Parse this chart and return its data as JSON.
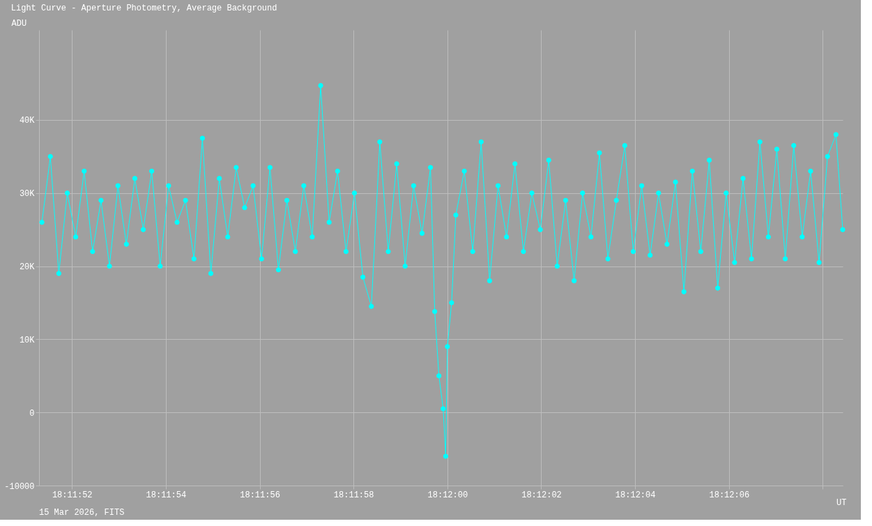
{
  "chart_data": {
    "type": "line",
    "title": "Light Curve - Aperture Photometry, Average Background",
    "ylabel": "ADU",
    "xlabel": "UT",
    "annotations": [
      "15 Mar 2026, FITS"
    ],
    "x": [
      18.1976,
      18.19765,
      18.1977,
      18.19775,
      18.1978,
      18.19785,
      18.1979,
      18.19795,
      18.198,
      18.19805,
      18.1981,
      18.19815,
      18.1982,
      18.19825,
      18.1983,
      18.19835,
      18.1984,
      18.19845,
      18.1985,
      18.19855,
      18.1986,
      18.19865,
      18.1987,
      18.19875,
      18.1988,
      18.19885,
      18.1989,
      18.19895,
      18.199,
      18.19905,
      18.1991,
      18.19915,
      18.1992,
      18.19925,
      18.1993,
      18.19935,
      18.1994,
      18.19945,
      18.1995,
      18.19955,
      18.1996,
      18.19965,
      18.1997,
      18.19975,
      18.1998,
      18.19985,
      18.1999,
      18.199925,
      18.19995,
      18.199975,
      18.19999,
      18.2,
      18.200025,
      18.20005,
      18.2001,
      18.20015,
      18.2002,
      18.20025,
      18.2003,
      18.20035,
      18.2004,
      18.20045,
      18.2005,
      18.20055,
      18.2006,
      18.20065,
      18.2007,
      18.20075,
      18.2008,
      18.20085,
      18.2009,
      18.20095,
      18.201,
      18.20105,
      18.2011,
      18.20115,
      18.2012,
      18.20125,
      18.2013,
      18.20135,
      18.2014,
      18.20145,
      18.2015,
      18.20155,
      18.2016,
      18.20165,
      18.2017,
      18.20175,
      18.2018,
      18.20185,
      18.2019,
      18.20195,
      18.202,
      18.20205,
      18.2021,
      18.20215,
      18.2022,
      18.20225,
      18.2023,
      18.20234
    ],
    "series": [
      {
        "color": "#00ffff",
        "values": [
          26000,
          35000,
          19000,
          30000,
          24000,
          33000,
          22000,
          29000,
          20000,
          31000,
          23000,
          32000,
          25000,
          33000,
          20000,
          31000,
          26000,
          29000,
          21000,
          37500,
          19000,
          32000,
          24000,
          33500,
          28000,
          31000,
          21000,
          33500,
          19500,
          29000,
          22000,
          31000,
          24000,
          44700,
          26000,
          33000,
          22000,
          30000,
          18500,
          14500,
          37000,
          22000,
          34000,
          20000,
          31000,
          24500,
          33500,
          13800,
          5000,
          500,
          -6000,
          9000,
          15000,
          27000,
          33000,
          22000,
          37000,
          18000,
          31000,
          24000,
          34000,
          22000,
          30000,
          25000,
          34500,
          20000,
          29000,
          18000,
          30000,
          24000,
          35500,
          21000,
          29000,
          36500,
          22000,
          31000,
          21500,
          30000,
          23000,
          31500,
          16500,
          33000,
          22000,
          34500,
          17000,
          30000,
          20500,
          32000,
          21000,
          37000,
          24000,
          36000,
          21000,
          36500,
          24000,
          33000,
          20500,
          35000,
          38000,
          25000
        ]
      }
    ],
    "xlim": [
      18.197583,
      18.20234
    ],
    "xticks": [
      {
        "value": 18.1977778,
        "label": "18:11:52"
      },
      {
        "value": 18.1983333,
        "label": "18:11:54"
      },
      {
        "value": 18.1988889,
        "label": "18:11:56"
      },
      {
        "value": 18.1994444,
        "label": "18:11:58"
      },
      {
        "value": 18.2,
        "label": "18:12:00"
      },
      {
        "value": 18.2005556,
        "label": "18:12:02"
      },
      {
        "value": 18.2011111,
        "label": "18:12:04"
      },
      {
        "value": 18.2016667,
        "label": "18:12:06"
      },
      {
        "value": 18.2022222,
        "label": null
      }
    ],
    "ylim": [
      -10000,
      52300
    ],
    "yticks": [
      -10000,
      0,
      {
        "value": 10000,
        "label": "10K"
      },
      {
        "value": 20000,
        "label": "20K"
      },
      {
        "value": 30000,
        "label": "30K"
      },
      {
        "value": 40000,
        "label": "40K"
      }
    ],
    "grid": true,
    "marker": "circle",
    "line_style": "solid"
  }
}
